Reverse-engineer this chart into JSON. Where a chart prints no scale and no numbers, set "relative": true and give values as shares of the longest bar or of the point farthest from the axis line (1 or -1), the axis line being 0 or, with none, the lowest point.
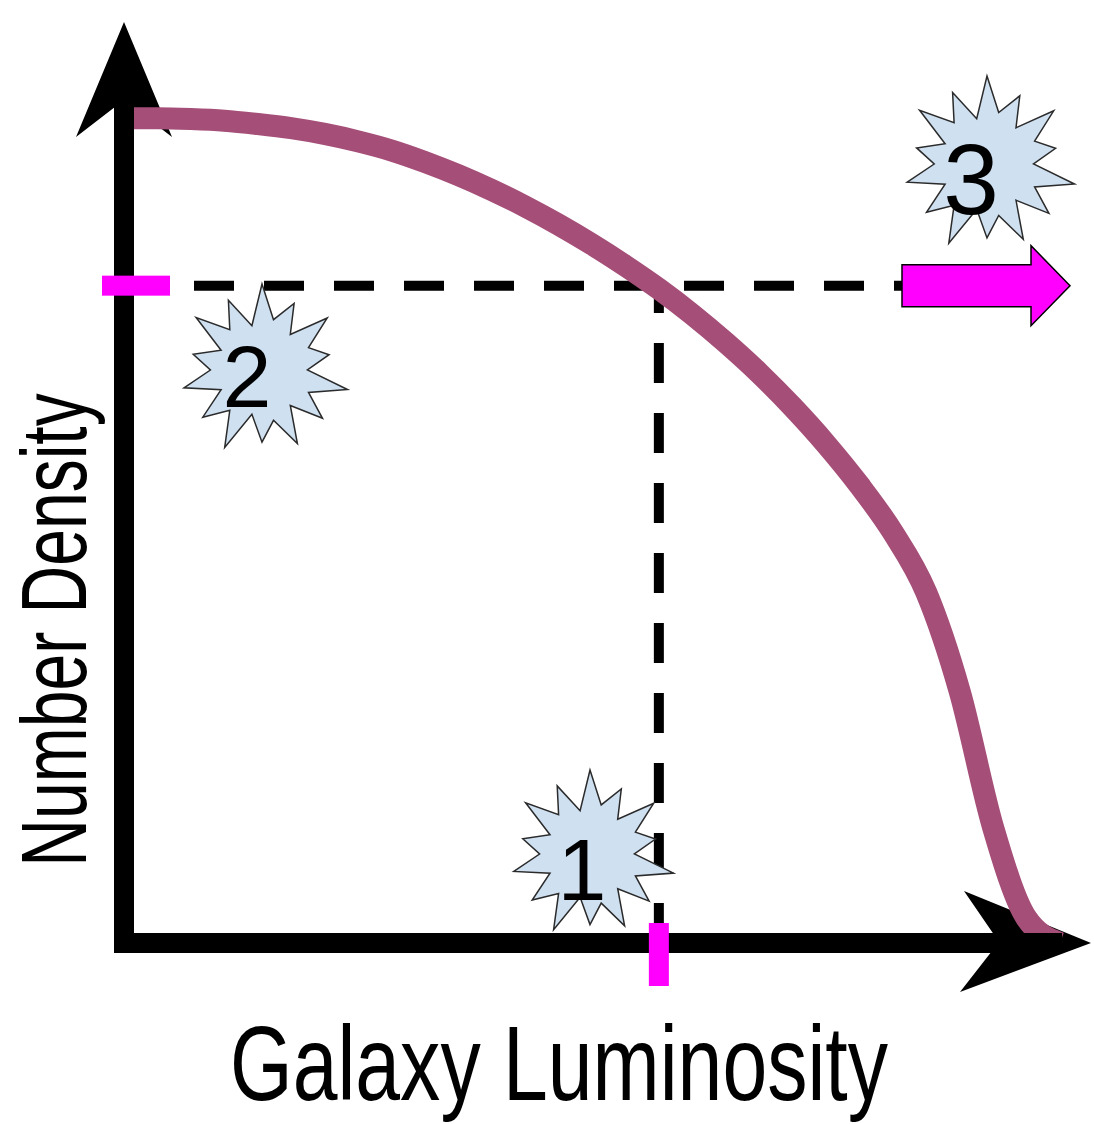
{
  "chart_data": {
    "type": "line",
    "xlabel": "Galaxy Luminosity",
    "ylabel": "Number Density",
    "relative": true,
    "categories": [
      null,
      null,
      null,
      null,
      null,
      null,
      null,
      null,
      null,
      null,
      null,
      null,
      null,
      null,
      null,
      null,
      null,
      null,
      null,
      null,
      null,
      null,
      null,
      null,
      null,
      null,
      null,
      null,
      null
    ],
    "values": [
      1.0,
      1.0,
      0.999,
      0.997,
      0.993,
      0.988,
      0.981,
      0.972,
      0.961,
      0.947,
      0.931,
      0.913,
      0.893,
      0.871,
      0.847,
      0.821,
      0.793,
      0.762,
      0.728,
      0.691,
      0.65,
      0.605,
      0.555,
      0.498,
      0.425,
      0.305,
      0.14,
      0.03,
      0.0
    ],
    "color": "#a54e78",
    "ref_lines": [
      {
        "axis": "y",
        "value": 0.797,
        "color": "#000000",
        "line_style": "dashed"
      }
    ],
    "annotations": [
      "1",
      "2",
      "3"
    ]
  }
}
